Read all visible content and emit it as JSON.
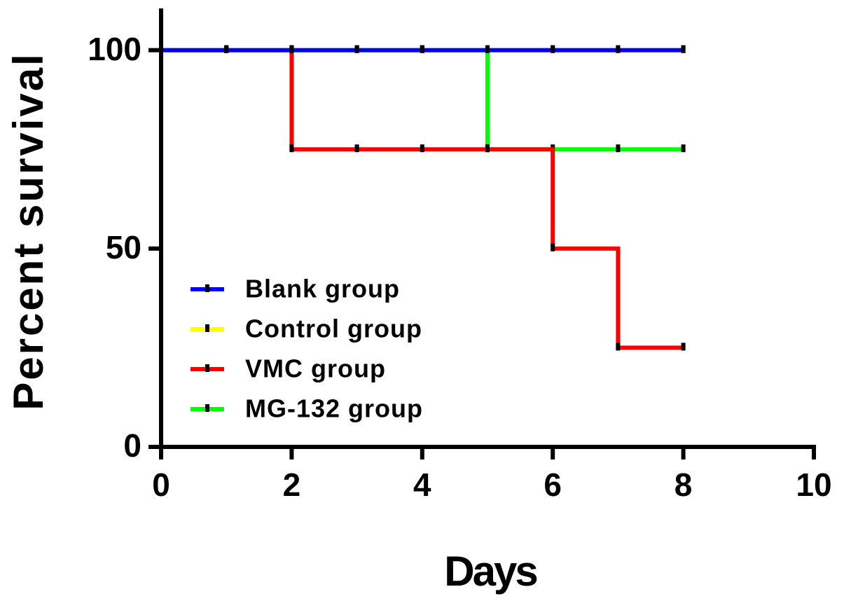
{
  "chart_data": {
    "type": "survival",
    "x_label": "Days",
    "y_label": "Percent survival",
    "x": [
      0,
      1,
      2,
      3,
      4,
      5,
      6,
      7,
      8
    ],
    "series": [
      {
        "name": "Blank group",
        "color": "#0000ff",
        "values": [
          100,
          100,
          100,
          100,
          100,
          100,
          100,
          100,
          100
        ]
      },
      {
        "name": "Control group",
        "color": "#ffff00",
        "values": [
          100,
          100,
          100,
          100,
          100,
          100,
          100,
          100,
          100
        ]
      },
      {
        "name": "VMC group",
        "color": "#ff0000",
        "values": [
          100,
          100,
          75,
          75,
          75,
          75,
          50,
          25,
          25
        ]
      },
      {
        "name": "MG-132 group",
        "color": "#00ff00",
        "values": [
          100,
          100,
          100,
          100,
          100,
          75,
          75,
          75,
          75
        ]
      }
    ],
    "xlim": [
      0,
      10
    ],
    "xticks": [
      0,
      2,
      4,
      6,
      8,
      10
    ],
    "ylim": [
      0,
      110
    ],
    "yticks": [
      0,
      50,
      100
    ],
    "grid": false,
    "legend": "lower left"
  }
}
